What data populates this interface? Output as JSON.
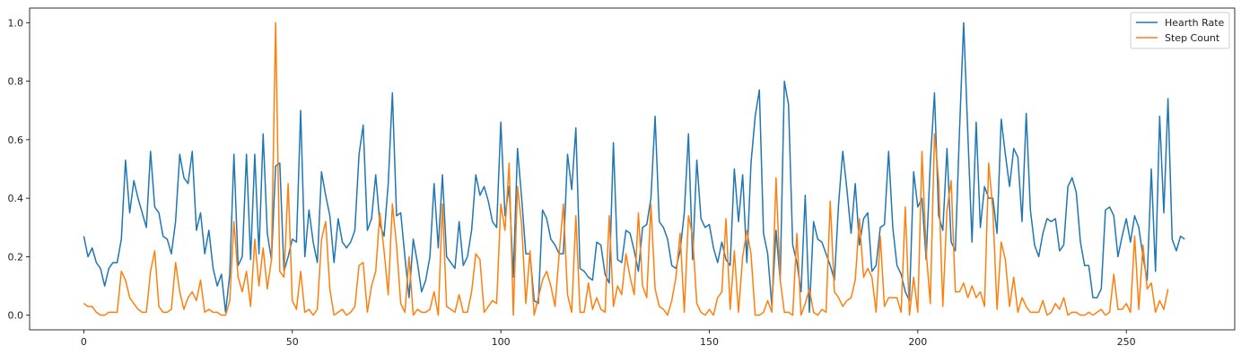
{
  "chart_data": {
    "type": "line",
    "title": "",
    "xlabel": "",
    "ylabel": "",
    "xlim": [
      -13,
      276
    ],
    "ylim": [
      -0.05,
      1.05
    ],
    "xticks": [
      0,
      50,
      100,
      150,
      200,
      250
    ],
    "yticks": [
      0.0,
      0.2,
      0.4,
      0.6,
      0.8,
      1.0
    ],
    "xtick_labels": [
      "0",
      "50",
      "100",
      "150",
      "200",
      "250"
    ],
    "ytick_labels": [
      "0.0",
      "0.2",
      "0.4",
      "0.6",
      "0.8",
      "1.0"
    ],
    "grid": false,
    "legend": "top-right",
    "series": [
      {
        "name": "Hearth Rate",
        "color": "#1f77b4",
        "values": [
          0.27,
          0.2,
          0.23,
          0.18,
          0.16,
          0.1,
          0.16,
          0.18,
          0.18,
          0.26,
          0.53,
          0.35,
          0.46,
          0.4,
          0.35,
          0.3,
          0.56,
          0.37,
          0.35,
          0.27,
          0.26,
          0.21,
          0.32,
          0.55,
          0.47,
          0.45,
          0.56,
          0.29,
          0.35,
          0.21,
          0.29,
          0.16,
          0.1,
          0.14,
          0.01,
          0.14,
          0.55,
          0.17,
          0.2,
          0.55,
          0.19,
          0.55,
          0.21,
          0.62,
          0.28,
          0.19,
          0.51,
          0.52,
          0.15,
          0.2,
          0.26,
          0.25,
          0.7,
          0.2,
          0.36,
          0.25,
          0.18,
          0.49,
          0.41,
          0.34,
          0.18,
          0.33,
          0.25,
          0.23,
          0.25,
          0.29,
          0.55,
          0.65,
          0.29,
          0.33,
          0.48,
          0.31,
          0.27,
          0.45,
          0.76,
          0.34,
          0.35,
          0.2,
          0.06,
          0.26,
          0.18,
          0.08,
          0.12,
          0.2,
          0.45,
          0.23,
          0.48,
          0.2,
          0.18,
          0.16,
          0.32,
          0.17,
          0.2,
          0.29,
          0.48,
          0.41,
          0.44,
          0.39,
          0.32,
          0.3,
          0.66,
          0.34,
          0.44,
          0.13,
          0.57,
          0.4,
          0.21,
          0.21,
          0.05,
          0.04,
          0.36,
          0.33,
          0.26,
          0.24,
          0.21,
          0.21,
          0.55,
          0.43,
          0.64,
          0.16,
          0.15,
          0.13,
          0.12,
          0.25,
          0.24,
          0.14,
          0.11,
          0.59,
          0.19,
          0.18,
          0.29,
          0.28,
          0.22,
          0.15,
          0.3,
          0.31,
          0.4,
          0.68,
          0.32,
          0.3,
          0.26,
          0.17,
          0.16,
          0.22,
          0.35,
          0.62,
          0.19,
          0.53,
          0.33,
          0.3,
          0.31,
          0.23,
          0.18,
          0.25,
          0.19,
          0.17,
          0.5,
          0.32,
          0.48,
          0.18,
          0.52,
          0.68,
          0.77,
          0.28,
          0.21,
          0.03,
          0.29,
          0.12,
          0.8,
          0.72,
          0.24,
          0.18,
          0.08,
          0.41,
          0.01,
          0.32,
          0.26,
          0.25,
          0.21,
          0.17,
          0.12,
          0.38,
          0.56,
          0.43,
          0.28,
          0.45,
          0.24,
          0.33,
          0.35,
          0.15,
          0.17,
          0.3,
          0.31,
          0.56,
          0.3,
          0.17,
          0.14,
          0.08,
          0.05,
          0.49,
          0.37,
          0.4,
          0.19,
          0.52,
          0.76,
          0.34,
          0.29,
          0.57,
          0.25,
          0.22,
          0.63,
          1.0,
          0.62,
          0.25,
          0.66,
          0.3,
          0.44,
          0.4,
          0.4,
          0.28,
          0.67,
          0.55,
          0.44,
          0.57,
          0.54,
          0.32,
          0.69,
          0.36,
          0.24,
          0.2,
          0.28,
          0.33,
          0.32,
          0.33,
          0.22,
          0.24,
          0.44,
          0.47,
          0.42,
          0.25,
          0.17,
          0.17,
          0.06,
          0.06,
          0.09,
          0.36,
          0.37,
          0.34,
          0.2,
          0.27,
          0.33,
          0.25,
          0.34,
          0.3,
          0.2,
          0.12,
          0.5,
          0.15,
          0.68,
          0.35,
          0.74,
          0.26,
          0.22,
          0.27,
          0.26
        ]
      },
      {
        "name": "Step Count",
        "color": "#ff7f0e",
        "values": [
          0.04,
          0.03,
          0.03,
          0.01,
          0.0,
          0.0,
          0.01,
          0.01,
          0.01,
          0.15,
          0.12,
          0.06,
          0.04,
          0.02,
          0.01,
          0.01,
          0.15,
          0.22,
          0.03,
          0.01,
          0.01,
          0.02,
          0.18,
          0.08,
          0.02,
          0.06,
          0.08,
          0.05,
          0.12,
          0.01,
          0.02,
          0.01,
          0.01,
          0.0,
          0.0,
          0.05,
          0.32,
          0.13,
          0.08,
          0.15,
          0.03,
          0.26,
          0.1,
          0.23,
          0.09,
          0.19,
          1.0,
          0.15,
          0.13,
          0.45,
          0.05,
          0.02,
          0.15,
          0.01,
          0.02,
          0.0,
          0.02,
          0.26,
          0.32,
          0.09,
          0.0,
          0.01,
          0.02,
          0.0,
          0.01,
          0.03,
          0.17,
          0.18,
          0.01,
          0.1,
          0.15,
          0.35,
          0.22,
          0.07,
          0.38,
          0.24,
          0.04,
          0.01,
          0.2,
          0.0,
          0.02,
          0.01,
          0.01,
          0.02,
          0.08,
          0.0,
          0.38,
          0.03,
          0.02,
          0.01,
          0.07,
          0.01,
          0.01,
          0.08,
          0.21,
          0.19,
          0.01,
          0.03,
          0.05,
          0.04,
          0.38,
          0.29,
          0.52,
          0.0,
          0.44,
          0.31,
          0.04,
          0.22,
          0.0,
          0.06,
          0.12,
          0.15,
          0.1,
          0.03,
          0.21,
          0.38,
          0.07,
          0.01,
          0.34,
          0.01,
          0.01,
          0.11,
          0.02,
          0.06,
          0.02,
          0.01,
          0.34,
          0.03,
          0.1,
          0.07,
          0.21,
          0.13,
          0.07,
          0.35,
          0.1,
          0.06,
          0.38,
          0.09,
          0.03,
          0.02,
          0.0,
          0.05,
          0.13,
          0.28,
          0.01,
          0.34,
          0.27,
          0.04,
          0.01,
          0.0,
          0.02,
          0.0,
          0.06,
          0.08,
          0.33,
          0.02,
          0.22,
          0.01,
          0.2,
          0.29,
          0.21,
          0.0,
          0.0,
          0.01,
          0.05,
          0.01,
          0.47,
          0.12,
          0.01,
          0.01,
          0.0,
          0.28,
          0.0,
          0.04,
          0.09,
          0.01,
          0.0,
          0.02,
          0.01,
          0.39,
          0.08,
          0.06,
          0.03,
          0.05,
          0.06,
          0.12,
          0.33,
          0.13,
          0.16,
          0.13,
          0.01,
          0.27,
          0.03,
          0.06,
          0.06,
          0.06,
          0.01,
          0.37,
          0.0,
          0.13,
          0.01,
          0.56,
          0.22,
          0.04,
          0.62,
          0.46,
          0.03,
          0.36,
          0.46,
          0.08,
          0.08,
          0.11,
          0.06,
          0.1,
          0.06,
          0.08,
          0.03,
          0.52,
          0.36,
          0.02,
          0.25,
          0.19,
          0.03,
          0.13,
          0.01,
          0.06,
          0.03,
          0.01,
          0.01,
          0.01,
          0.05,
          0.0,
          0.01,
          0.04,
          0.02,
          0.06,
          0.0,
          0.01,
          0.01,
          0.0,
          0.0,
          0.01,
          0.0,
          0.01,
          0.02,
          0.0,
          0.01,
          0.14,
          0.02,
          0.02,
          0.04,
          0.01,
          0.27,
          0.02,
          0.24,
          0.09,
          0.11,
          0.01,
          0.05,
          0.02,
          0.09
        ]
      }
    ]
  }
}
